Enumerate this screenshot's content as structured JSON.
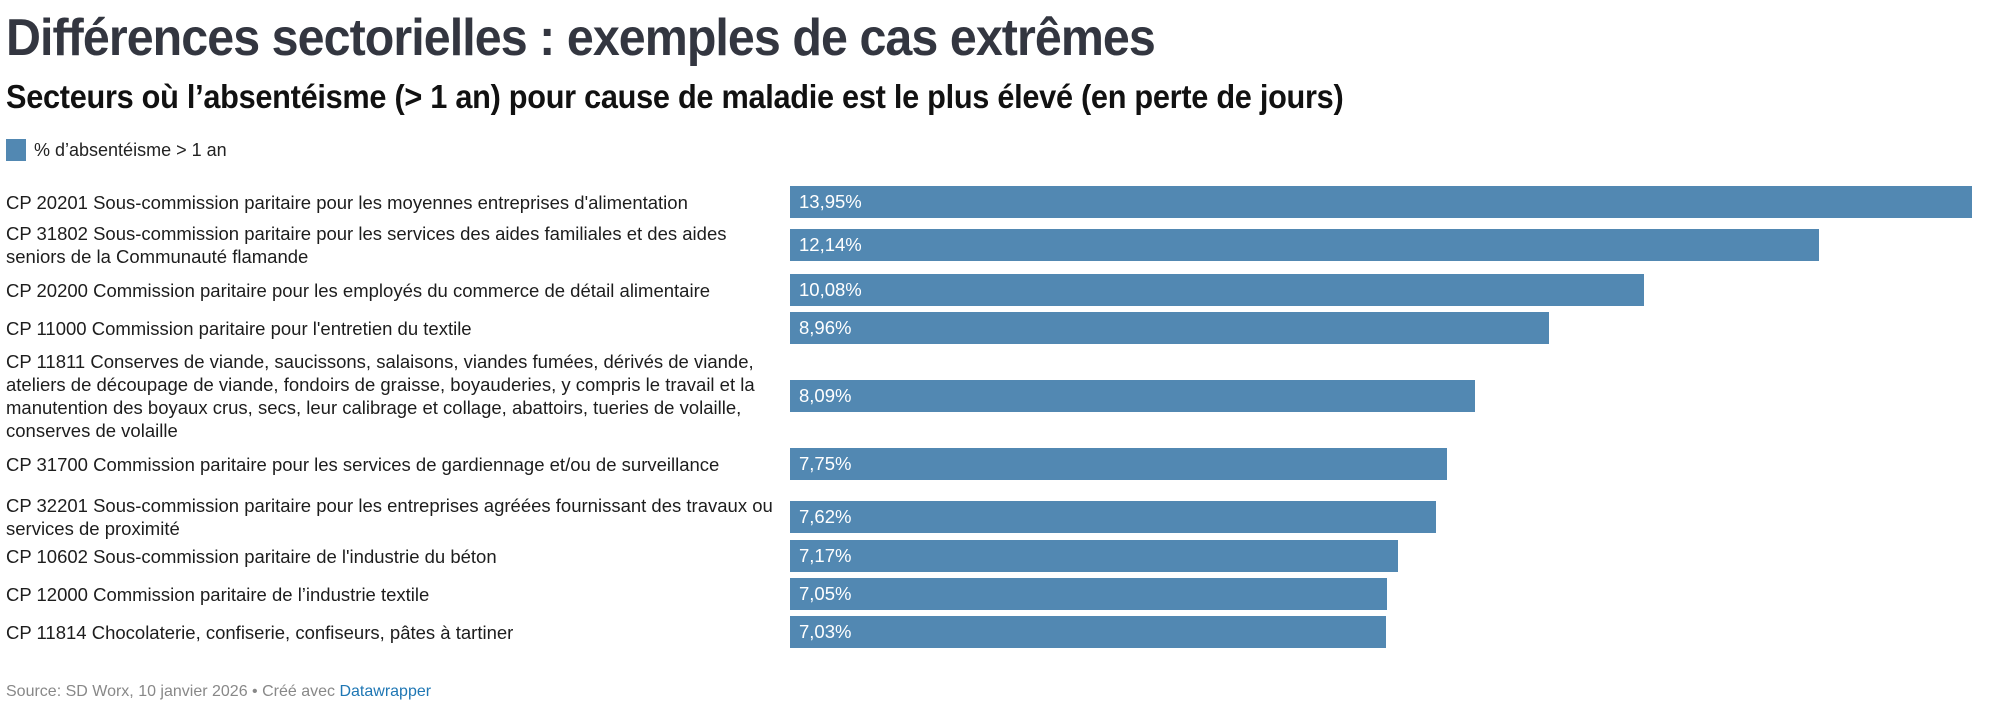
{
  "title": "Différences sectorielles : exemples de cas extrêmes",
  "subtitle": "Secteurs où l’absentéisme (> 1 an) pour cause de maladie est le plus élevé (en perte de jours)",
  "colors": {
    "bar": "#5288b2",
    "title": "#333640",
    "link": "#1f77b4",
    "footer": "#888888"
  },
  "footer": {
    "source_text": "Source: SD Worx, 10 janvier 2026 • Créé avec ",
    "link_label": "Datawrapper"
  },
  "chart_data": {
    "type": "bar",
    "orientation": "horizontal",
    "title": "Différences sectorielles : exemples de cas extrêmes",
    "subtitle": "Secteurs où l’absentéisme (> 1 an) pour cause de maladie est le plus élevé (en perte de jours)",
    "xlabel": "",
    "ylabel": "",
    "xlim": [
      0,
      13.95
    ],
    "grid": false,
    "legend": {
      "placement": "top-left",
      "entries": [
        "% d’absentéisme > 1 an"
      ]
    },
    "series": [
      {
        "name": "% d’absentéisme > 1 an",
        "values": [
          13.95,
          12.14,
          10.08,
          8.96,
          8.09,
          7.75,
          7.62,
          7.17,
          7.05,
          7.03
        ]
      }
    ],
    "categories": [
      "CP 20201 Sous-commission paritaire pour les moyennes entreprises d'alimentation",
      "CP 31802 Sous-commission paritaire pour les services des aides familiales et des aides seniors de la Communauté flamande",
      "CP 20200 Commission paritaire pour les employés du commerce de détail alimentaire",
      "CP 11000 Commission paritaire pour l'entretien du textile",
      "CP 11811 Conserves de viande, saucissons, salaisons, viandes fumées, dérivés de viande, ateliers de découpage de viande, fondoirs de graisse, boyauderies, y compris le travail et la manutention des boyaux crus, secs, leur calibrage et collage, abattoirs, tueries de volaille, conserves de volaille",
      "CP 31700 Commission paritaire pour les services de gardiennage et/ou de surveillance",
      "CP 32201 Sous-commission paritaire pour les entreprises agréées fournissant des travaux ou services de proximité",
      "CP 10602 Sous-commission paritaire de l'industrie du béton",
      "CP 12000 Commission paritaire de l’industrie textile",
      "CP 11814 Chocolaterie, confiserie, confiseurs, pâtes à tartiner"
    ],
    "value_labels": [
      "13,95%",
      "12,14%",
      "10,08%",
      "8,96%",
      "8,09%",
      "7,75%",
      "7,62%",
      "7,17%",
      "7,05%",
      "7,03%"
    ]
  }
}
